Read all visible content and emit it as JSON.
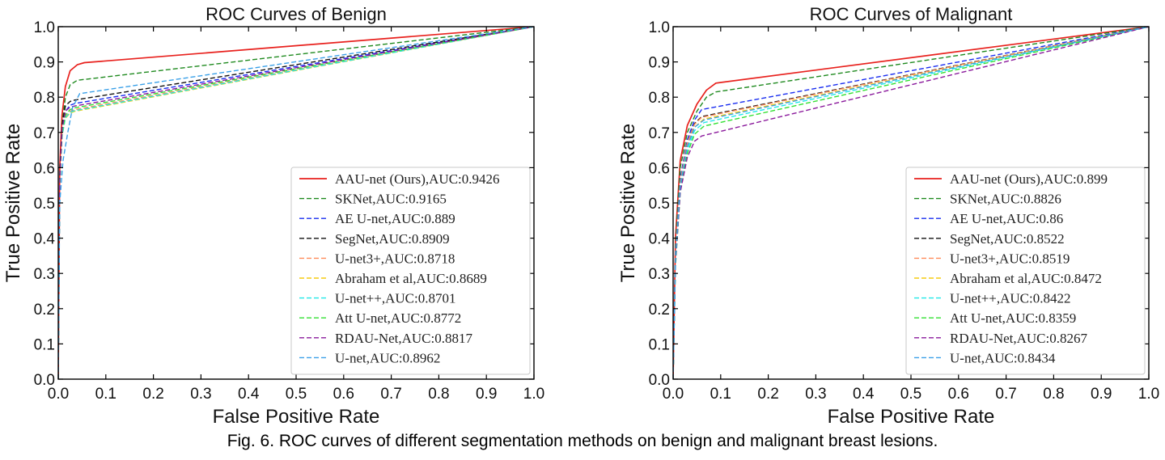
{
  "figure_caption": "Fig. 6.  ROC curves of different segmentation methods on benign and malignant breast lesions.",
  "colors": {
    "AAU-net": "#e8211d",
    "SKNet": "#1f8a1f",
    "AE U-net": "#1a2ef0",
    "SegNet": "#111111",
    "U-net3+": "#ff8c5a",
    "Abraham": "#f5cc10",
    "U-net++": "#22e8e8",
    "Att U-net": "#33e033",
    "RDAU-Net": "#8b1a9c",
    "U-net": "#3aa0e8"
  },
  "chart_data": [
    {
      "type": "line",
      "title": "ROC Curves of Benign",
      "xlabel": "False Positive Rate",
      "ylabel": "True Positive Rate",
      "xlim": [
        0.0,
        1.0
      ],
      "ylim": [
        0.0,
        1.0
      ],
      "xticks": [
        "0.0",
        "0.1",
        "0.2",
        "0.3",
        "0.4",
        "0.5",
        "0.6",
        "0.7",
        "0.8",
        "0.9",
        "1.0"
      ],
      "yticks": [
        "0.0",
        "0.1",
        "0.2",
        "0.3",
        "0.4",
        "0.5",
        "0.6",
        "0.7",
        "0.8",
        "0.9",
        "1.0"
      ],
      "legend_position": "lower-right",
      "series": [
        {
          "name": "AAU-net (Ours),AUC:0.9426",
          "color_key": "AAU-net",
          "dashed": false,
          "x": [
            0,
            0.003,
            0.008,
            0.015,
            0.025,
            0.04,
            0.055,
            1.0
          ],
          "y": [
            0,
            0.6,
            0.75,
            0.83,
            0.875,
            0.892,
            0.898,
            1.0
          ]
        },
        {
          "name": "SKNet,AUC:0.9165",
          "color_key": "SKNet",
          "dashed": true,
          "x": [
            0,
            0.003,
            0.008,
            0.015,
            0.025,
            0.04,
            1.0
          ],
          "y": [
            0,
            0.58,
            0.72,
            0.8,
            0.835,
            0.848,
            1.0
          ]
        },
        {
          "name": "AE U-net,AUC:0.889",
          "color_key": "AE U-net",
          "dashed": true,
          "x": [
            0,
            0.003,
            0.008,
            0.015,
            0.025,
            0.035,
            1.0
          ],
          "y": [
            0,
            0.55,
            0.7,
            0.76,
            0.777,
            0.782,
            1.0
          ]
        },
        {
          "name": "SegNet,AUC:0.8909",
          "color_key": "SegNet",
          "dashed": true,
          "x": [
            0,
            0.003,
            0.008,
            0.015,
            0.025,
            0.035,
            1.0
          ],
          "y": [
            0,
            0.57,
            0.72,
            0.775,
            0.788,
            0.792,
            1.0
          ]
        },
        {
          "name": "U-net3+,AUC:0.8718",
          "color_key": "U-net3+",
          "dashed": true,
          "x": [
            0,
            0.003,
            0.008,
            0.015,
            0.025,
            0.035,
            1.0
          ],
          "y": [
            0,
            0.55,
            0.69,
            0.745,
            0.76,
            0.765,
            1.0
          ]
        },
        {
          "name": "Abraham et al,AUC:0.8689",
          "color_key": "Abraham",
          "dashed": true,
          "x": [
            0,
            0.003,
            0.008,
            0.015,
            0.025,
            0.035,
            1.0
          ],
          "y": [
            0,
            0.55,
            0.69,
            0.74,
            0.755,
            0.76,
            1.0
          ]
        },
        {
          "name": "U-net++,AUC:0.8701",
          "color_key": "U-net++",
          "dashed": true,
          "x": [
            0,
            0.003,
            0.008,
            0.015,
            0.025,
            0.035,
            1.0
          ],
          "y": [
            0,
            0.55,
            0.69,
            0.742,
            0.757,
            0.762,
            1.0
          ]
        },
        {
          "name": "Att U-net,AUC:0.8772",
          "color_key": "Att U-net",
          "dashed": true,
          "x": [
            0,
            0.003,
            0.008,
            0.015,
            0.025,
            0.035,
            1.0
          ],
          "y": [
            0,
            0.55,
            0.7,
            0.75,
            0.765,
            0.77,
            1.0
          ]
        },
        {
          "name": "RDAU-Net,AUC:0.8817",
          "color_key": "RDAU-Net",
          "dashed": true,
          "x": [
            0,
            0.003,
            0.008,
            0.015,
            0.025,
            0.035,
            1.0
          ],
          "y": [
            0,
            0.56,
            0.71,
            0.76,
            0.772,
            0.775,
            1.0
          ]
        },
        {
          "name": "U-net,AUC:0.8962",
          "color_key": "U-net",
          "dashed": true,
          "x": [
            0,
            0.003,
            0.01,
            0.02,
            0.03,
            0.045,
            1.0
          ],
          "y": [
            0,
            0.5,
            0.62,
            0.7,
            0.77,
            0.81,
            1.0
          ]
        }
      ]
    },
    {
      "type": "line",
      "title": "ROC Curves of Malignant",
      "xlabel": "False Positive Rate",
      "ylabel": "True Positive Rate",
      "xlim": [
        0.0,
        1.0
      ],
      "ylim": [
        0.0,
        1.0
      ],
      "xticks": [
        "0.0",
        "0.1",
        "0.2",
        "0.3",
        "0.4",
        "0.5",
        "0.6",
        "0.7",
        "0.8",
        "0.9",
        "1.0"
      ],
      "yticks": [
        "0.0",
        "0.1",
        "0.2",
        "0.3",
        "0.4",
        "0.5",
        "0.6",
        "0.7",
        "0.8",
        "0.9",
        "1.0"
      ],
      "legend_position": "lower-right",
      "series": [
        {
          "name": "AAU-net (Ours),AUC:0.899",
          "color_key": "AAU-net",
          "dashed": false,
          "x": [
            0,
            0.005,
            0.015,
            0.03,
            0.05,
            0.07,
            0.09,
            1.0
          ],
          "y": [
            0,
            0.4,
            0.62,
            0.72,
            0.78,
            0.82,
            0.84,
            1.0
          ]
        },
        {
          "name": "SKNet,AUC:0.8826",
          "color_key": "SKNet",
          "dashed": true,
          "x": [
            0,
            0.005,
            0.015,
            0.03,
            0.05,
            0.07,
            0.09,
            1.0
          ],
          "y": [
            0,
            0.38,
            0.6,
            0.7,
            0.76,
            0.8,
            0.815,
            1.0
          ]
        },
        {
          "name": "AE U-net,AUC:0.86",
          "color_key": "AE U-net",
          "dashed": true,
          "x": [
            0,
            0.005,
            0.015,
            0.03,
            0.045,
            0.06,
            1.0
          ],
          "y": [
            0,
            0.36,
            0.57,
            0.68,
            0.735,
            0.765,
            1.0
          ]
        },
        {
          "name": "SegNet,AUC:0.8522",
          "color_key": "SegNet",
          "dashed": true,
          "x": [
            0,
            0.005,
            0.015,
            0.03,
            0.045,
            0.06,
            1.0
          ],
          "y": [
            0,
            0.35,
            0.56,
            0.67,
            0.725,
            0.745,
            1.0
          ]
        },
        {
          "name": "U-net3+,AUC:0.8519",
          "color_key": "U-net3+",
          "dashed": true,
          "x": [
            0,
            0.005,
            0.015,
            0.03,
            0.045,
            0.06,
            1.0
          ],
          "y": [
            0,
            0.35,
            0.56,
            0.67,
            0.723,
            0.743,
            1.0
          ]
        },
        {
          "name": "Abraham et al,AUC:0.8472",
          "color_key": "Abraham",
          "dashed": true,
          "x": [
            0,
            0.005,
            0.015,
            0.03,
            0.045,
            0.065,
            1.0
          ],
          "y": [
            0,
            0.34,
            0.55,
            0.66,
            0.715,
            0.738,
            1.0
          ]
        },
        {
          "name": "U-net++,AUC:0.8422",
          "color_key": "U-net++",
          "dashed": true,
          "x": [
            0,
            0.005,
            0.015,
            0.03,
            0.045,
            0.065,
            1.0
          ],
          "y": [
            0,
            0.33,
            0.54,
            0.65,
            0.705,
            0.728,
            1.0
          ]
        },
        {
          "name": "Att U-net,AUC:0.8359",
          "color_key": "Att U-net",
          "dashed": true,
          "x": [
            0,
            0.005,
            0.015,
            0.03,
            0.045,
            0.065,
            1.0
          ],
          "y": [
            0,
            0.32,
            0.53,
            0.64,
            0.695,
            0.718,
            1.0
          ]
        },
        {
          "name": "RDAU-Net,AUC:0.8267",
          "color_key": "RDAU-Net",
          "dashed": true,
          "x": [
            0,
            0.005,
            0.015,
            0.03,
            0.045,
            0.06,
            1.0
          ],
          "y": [
            0,
            0.33,
            0.53,
            0.63,
            0.675,
            0.69,
            1.0
          ]
        },
        {
          "name": "U-net,AUC:0.8434",
          "color_key": "U-net",
          "dashed": true,
          "x": [
            0,
            0.005,
            0.015,
            0.03,
            0.045,
            0.065,
            1.0
          ],
          "y": [
            0,
            0.34,
            0.55,
            0.66,
            0.715,
            0.735,
            1.0
          ]
        }
      ]
    }
  ]
}
